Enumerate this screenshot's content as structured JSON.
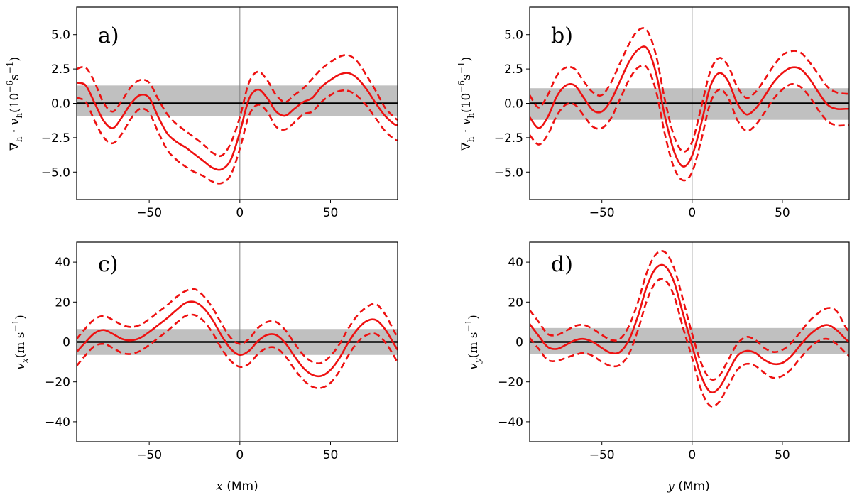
{
  "chart_data": [
    {
      "type": "line",
      "panel_label": "a)",
      "xlabel": "",
      "ylabel": "∇h · vh (10⁻⁶ s⁻¹)",
      "ylabel_parts": {
        "main": "∇",
        "sub1": "h",
        "dot": " · ",
        "v": "v",
        "sub2": "h",
        "open": "(10",
        "sup": "−6",
        "unit": "s",
        "sup2": "−1",
        "close": ")"
      },
      "xlim": [
        -90,
        87
      ],
      "ylim": [
        -7,
        7
      ],
      "xticks": [
        -50,
        0,
        50
      ],
      "xtick_labels": [
        "−50",
        "0",
        "50"
      ],
      "yticks": [
        -5.0,
        -2.5,
        0.0,
        2.5,
        5.0
      ],
      "ytick_labels": [
        "−5.0",
        "−2.5",
        "0.0",
        "2.5",
        "5.0"
      ],
      "band": [
        -0.95,
        1.3
      ],
      "x": [
        -90,
        -85,
        -80,
        -75,
        -70,
        -65,
        -60,
        -55,
        -50,
        -45,
        -40,
        -35,
        -30,
        -25,
        -20,
        -15,
        -10,
        -5,
        0,
        5,
        10,
        15,
        20,
        25,
        30,
        35,
        40,
        45,
        50,
        55,
        60,
        65,
        70,
        75,
        80,
        85,
        87
      ],
      "series": [
        {
          "name": "mean",
          "style": "solid",
          "values": [
            1.5,
            1.3,
            0.0,
            -1.3,
            -1.8,
            -1.0,
            0.0,
            0.6,
            0.4,
            -1.0,
            -2.2,
            -2.8,
            -3.2,
            -3.7,
            -4.2,
            -4.7,
            -4.8,
            -4.1,
            -2.1,
            0.3,
            1.0,
            0.4,
            -0.6,
            -0.9,
            -0.4,
            0.1,
            0.4,
            1.2,
            1.7,
            2.1,
            2.2,
            1.8,
            1.0,
            0.0,
            -0.9,
            -1.5,
            -1.6
          ]
        },
        {
          "name": "upper",
          "style": "dashed",
          "values": [
            2.5,
            2.6,
            1.5,
            0.0,
            -0.6,
            0.2,
            1.2,
            1.7,
            1.5,
            0.3,
            -0.8,
            -1.5,
            -2.0,
            -2.5,
            -3.0,
            -3.6,
            -3.8,
            -2.9,
            -1.0,
            1.5,
            2.3,
            1.7,
            0.6,
            0.1,
            0.6,
            1.1,
            1.8,
            2.5,
            3.0,
            3.4,
            3.5,
            3.0,
            2.0,
            0.9,
            -0.3,
            -1.0,
            -1.2
          ]
        },
        {
          "name": "lower",
          "style": "dashed",
          "values": [
            0.4,
            0.1,
            -1.3,
            -2.5,
            -2.9,
            -2.2,
            -1.1,
            -0.4,
            -0.7,
            -2.1,
            -3.4,
            -4.1,
            -4.6,
            -5.0,
            -5.3,
            -5.7,
            -5.8,
            -5.2,
            -3.3,
            -0.9,
            -0.1,
            -0.6,
            -1.7,
            -1.9,
            -1.4,
            -0.8,
            -0.6,
            0.1,
            0.6,
            0.9,
            0.9,
            0.5,
            -0.2,
            -1.1,
            -2.0,
            -2.6,
            -2.7
          ]
        }
      ]
    },
    {
      "type": "line",
      "panel_label": "b)",
      "xlabel": "",
      "ylabel": "∇h · vh (10⁻⁶ s⁻¹)",
      "ylabel_parts": {
        "main": "∇",
        "sub1": "h",
        "dot": " · ",
        "v": "v",
        "sub2": "h",
        "open": "(10",
        "sup": "−6",
        "unit": "s",
        "sup2": "−1",
        "close": ")"
      },
      "xlim": [
        -90,
        87
      ],
      "ylim": [
        -7,
        7
      ],
      "xticks": [
        -50,
        0,
        50
      ],
      "xtick_labels": [
        "−50",
        "0",
        "50"
      ],
      "yticks": [
        -5.0,
        -2.5,
        0.0,
        2.5,
        5.0
      ],
      "ytick_labels": [
        "−5.0",
        "−2.5",
        "0.0",
        "2.5",
        "5.0"
      ],
      "band": [
        -1.2,
        1.1
      ],
      "x": [
        -90,
        -85,
        -80,
        -75,
        -70,
        -65,
        -60,
        -55,
        -50,
        -45,
        -40,
        -35,
        -30,
        -25,
        -20,
        -15,
        -10,
        -5,
        0,
        5,
        10,
        15,
        20,
        25,
        30,
        35,
        40,
        45,
        50,
        55,
        60,
        65,
        70,
        75,
        80,
        85,
        87
      ],
      "series": [
        {
          "name": "mean",
          "style": "solid",
          "values": [
            -1.0,
            -1.8,
            -1.0,
            0.5,
            1.3,
            1.3,
            0.4,
            -0.5,
            -0.6,
            0.2,
            1.6,
            3.0,
            3.9,
            4.0,
            2.2,
            -1.0,
            -3.5,
            -4.6,
            -3.8,
            -1.5,
            1.2,
            2.2,
            1.6,
            0.0,
            -0.8,
            -0.4,
            0.5,
            1.5,
            2.2,
            2.6,
            2.5,
            1.8,
            0.8,
            -0.1,
            -0.4,
            -0.4,
            -0.4
          ]
        },
        {
          "name": "upper",
          "style": "dashed",
          "values": [
            0.6,
            -0.3,
            0.6,
            2.0,
            2.6,
            2.5,
            1.6,
            0.8,
            0.6,
            1.5,
            2.9,
            4.3,
            5.3,
            5.3,
            3.5,
            0.2,
            -2.4,
            -3.5,
            -2.8,
            -0.3,
            2.3,
            3.3,
            2.7,
            1.2,
            0.4,
            0.8,
            1.7,
            2.7,
            3.5,
            3.8,
            3.7,
            3.0,
            2.1,
            1.2,
            0.8,
            0.7,
            0.7
          ]
        },
        {
          "name": "lower",
          "style": "dashed",
          "values": [
            -2.3,
            -3.0,
            -2.3,
            -0.9,
            -0.1,
            -0.1,
            -0.9,
            -1.7,
            -1.8,
            -1.1,
            0.3,
            1.7,
            2.6,
            2.6,
            0.9,
            -2.3,
            -4.7,
            -5.6,
            -5.0,
            -2.7,
            0.0,
            1.0,
            0.4,
            -1.2,
            -2.0,
            -1.6,
            -0.7,
            0.3,
            1.0,
            1.4,
            1.2,
            0.5,
            -0.5,
            -1.3,
            -1.6,
            -1.6,
            -1.6
          ]
        }
      ]
    },
    {
      "type": "line",
      "panel_label": "c)",
      "xlabel": "x (Mm)",
      "xlabel_parts": {
        "var": "x",
        "unit": " (Mm)"
      },
      "ylabel": "vx (m s⁻¹)",
      "ylabel_parts": {
        "v": "v",
        "sub": "x",
        "open": "(m s",
        "sup": "−1",
        "close": ")"
      },
      "xlim": [
        -90,
        87
      ],
      "ylim": [
        -50,
        50
      ],
      "xticks": [
        -50,
        0,
        50
      ],
      "xtick_labels": [
        "−50",
        "0",
        "50"
      ],
      "yticks": [
        -40,
        -20,
        0,
        20,
        40
      ],
      "ytick_labels": [
        "−40",
        "−20",
        "0",
        "20",
        "40"
      ],
      "band": [
        -6.5,
        6.5
      ],
      "x": [
        -90,
        -85,
        -80,
        -75,
        -70,
        -65,
        -60,
        -55,
        -50,
        -45,
        -40,
        -35,
        -30,
        -25,
        -20,
        -15,
        -10,
        -5,
        0,
        5,
        10,
        15,
        20,
        25,
        30,
        35,
        40,
        45,
        50,
        55,
        60,
        65,
        70,
        75,
        80,
        85,
        87
      ],
      "series": [
        {
          "name": "mean",
          "style": "solid",
          "values": [
            -5.0,
            0.0,
            4.5,
            6.0,
            4.0,
            1.5,
            0.8,
            2.0,
            5.0,
            8.5,
            12.0,
            16.0,
            19.5,
            20.0,
            17.0,
            11.0,
            3.0,
            -3.5,
            -6.5,
            -4.5,
            0.5,
            3.5,
            3.5,
            -0.5,
            -7.0,
            -13.0,
            -16.5,
            -17.0,
            -14.0,
            -8.0,
            0.0,
            6.5,
            10.5,
            11.0,
            6.5,
            -1.0,
            -4.0
          ]
        },
        {
          "name": "upper",
          "style": "dashed",
          "values": [
            1.5,
            7.0,
            11.5,
            13.0,
            11.0,
            8.5,
            7.5,
            8.5,
            11.5,
            15.0,
            18.5,
            22.5,
            25.5,
            26.5,
            23.0,
            17.0,
            9.0,
            2.0,
            -1.0,
            1.5,
            7.0,
            10.0,
            10.0,
            6.0,
            -0.5,
            -6.5,
            -10.0,
            -10.5,
            -7.0,
            -1.0,
            7.0,
            13.5,
            17.5,
            19.0,
            14.0,
            5.5,
            2.5
          ]
        },
        {
          "name": "lower",
          "style": "dashed",
          "values": [
            -12.0,
            -6.5,
            -2.0,
            -1.0,
            -3.0,
            -5.5,
            -6.0,
            -4.5,
            -1.5,
            2.0,
            5.5,
            9.5,
            13.0,
            13.5,
            10.5,
            4.5,
            -3.5,
            -9.5,
            -12.5,
            -11.0,
            -6.0,
            -3.0,
            -3.0,
            -7.0,
            -13.5,
            -19.0,
            -22.5,
            -23.0,
            -20.5,
            -14.5,
            -6.5,
            0.0,
            3.5,
            4.0,
            0.0,
            -7.0,
            -10.5
          ]
        }
      ]
    },
    {
      "type": "line",
      "panel_label": "d)",
      "xlabel": "y (Mm)",
      "xlabel_parts": {
        "var": "y",
        "unit": " (Mm)"
      },
      "ylabel": "vy (m s⁻¹)",
      "ylabel_parts": {
        "v": "v",
        "sub": "y",
        "open": "(m s",
        "sup": "−1",
        "close": ")"
      },
      "xlim": [
        -90,
        87
      ],
      "ylim": [
        -50,
        50
      ],
      "xticks": [
        -50,
        0,
        50
      ],
      "xtick_labels": [
        "−50",
        "0",
        "50"
      ],
      "yticks": [
        -40,
        -20,
        0,
        20,
        40
      ],
      "ytick_labels": [
        "−40",
        "−20",
        "0",
        "20",
        "40"
      ],
      "band": [
        -6.0,
        7.0
      ],
      "x": [
        -90,
        -85,
        -80,
        -75,
        -70,
        -65,
        -60,
        -55,
        -50,
        -45,
        -40,
        -35,
        -30,
        -25,
        -20,
        -15,
        -10,
        -5,
        0,
        5,
        10,
        15,
        20,
        25,
        30,
        35,
        40,
        45,
        50,
        55,
        60,
        65,
        70,
        75,
        80,
        85,
        87
      ],
      "series": [
        {
          "name": "mean",
          "style": "solid",
          "values": [
            9.0,
            3.0,
            -2.5,
            -3.5,
            -1.5,
            0.8,
            1.5,
            0.0,
            -3.0,
            -5.5,
            -5.0,
            1.0,
            13.0,
            28.0,
            37.0,
            38.0,
            30.0,
            14.0,
            -2.0,
            -17.0,
            -25.0,
            -23.0,
            -15.0,
            -7.0,
            -4.5,
            -5.5,
            -9.0,
            -11.0,
            -10.5,
            -7.0,
            -1.5,
            3.5,
            7.0,
            8.5,
            6.0,
            1.5,
            0.0
          ]
        },
        {
          "name": "upper",
          "style": "dashed",
          "values": [
            16.0,
            10.0,
            4.0,
            3.5,
            5.5,
            8.0,
            8.5,
            6.5,
            3.5,
            1.0,
            1.5,
            8.0,
            20.0,
            35.0,
            44.0,
            45.0,
            37.0,
            21.0,
            4.0,
            -10.5,
            -18.5,
            -17.0,
            -9.0,
            -1.0,
            2.5,
            1.0,
            -3.0,
            -5.0,
            -4.0,
            -0.5,
            5.0,
            10.5,
            14.5,
            17.0,
            15.5,
            7.5,
            5.0
          ]
        },
        {
          "name": "lower",
          "style": "dashed",
          "values": [
            2.0,
            -3.5,
            -9.0,
            -9.5,
            -8.0,
            -6.5,
            -5.5,
            -7.0,
            -10.0,
            -12.0,
            -11.5,
            -6.0,
            6.0,
            21.0,
            30.0,
            31.0,
            23.0,
            7.0,
            -8.0,
            -24.0,
            -32.0,
            -30.0,
            -22.0,
            -14.0,
            -11.0,
            -12.0,
            -15.5,
            -18.0,
            -17.0,
            -13.5,
            -8.0,
            -3.0,
            0.5,
            1.5,
            -1.0,
            -5.5,
            -7.0
          ]
        }
      ]
    }
  ]
}
